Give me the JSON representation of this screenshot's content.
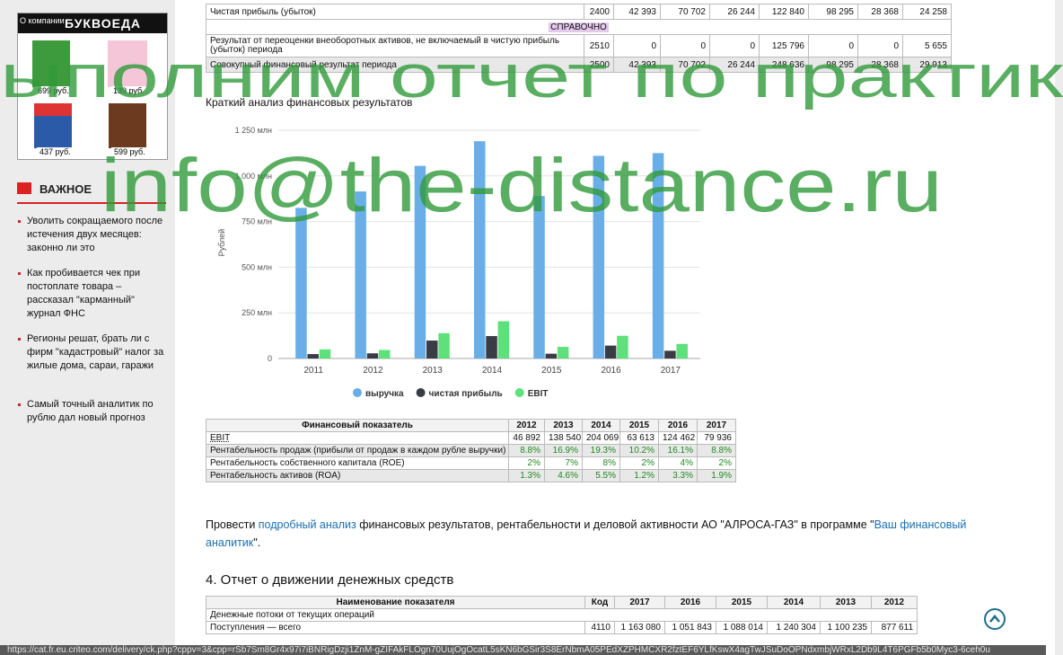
{
  "sidebar": {
    "ad_header": "О компании",
    "ad_brand": "БУКВОЕДА",
    "prices": [
      "699 руб.",
      "139 руб.",
      "437 руб.",
      "599 руб."
    ],
    "section_title": "ВАЖНОЕ",
    "news": [
      "Уволить сокращаемого после истечения двух месяцев: законно ли это",
      "Как пробивается чек при постоплате товара – рассказал \"карманный\" журнал ФНС",
      "Регионы решат, брать ли с фирм \"кадастровый\" налог за жилые дома, сараи, гаражи",
      "Самый точный аналитик по рублю дал новый прогноз"
    ]
  },
  "top_table": {
    "rows": [
      [
        "Чистая прибыль (убыток)",
        "2400",
        "42 393",
        "70 702",
        "26 244",
        "122 840",
        "98 295",
        "28 368",
        "24 258"
      ],
      [
        "СПРАВОЧНО"
      ],
      [
        "Результат от переоценки внеоборотных активов, не включаемый в чистую прибыль (убыток) периода",
        "2510",
        "0",
        "0",
        "0",
        "125 796",
        "0",
        "0",
        "5 655"
      ],
      [
        "Совокупный финансовый результат периода",
        "2500",
        "42 393",
        "70 702",
        "26 244",
        "248 636",
        "98 295",
        "28 368",
        "29 913"
      ]
    ]
  },
  "chart_data": {
    "type": "bar",
    "title": "Краткий анализ финансовых результатов",
    "y_label": "Рублей",
    "categories": [
      "2011",
      "2012",
      "2013",
      "2014",
      "2015",
      "2016",
      "2017"
    ],
    "series": [
      {
        "name": "выручка",
        "color": "#6aaee8",
        "values": [
          825,
          915,
          1055,
          1190,
          890,
          1110,
          1125
        ]
      },
      {
        "name": "чистая прибыль",
        "color": "#3a3c45",
        "values": [
          24.258,
          28.368,
          98.295,
          122.84,
          26.244,
          70.702,
          42.393
        ]
      },
      {
        "name": "EBIT",
        "color": "#5ee07a",
        "values": [
          50,
          46.892,
          138.54,
          204.069,
          63.613,
          124.462,
          79.936
        ]
      }
    ],
    "ylim": [
      0,
      1250
    ],
    "yticks": [
      0,
      {
        "value": 250,
        "label": "250 млн"
      },
      {
        "value": 500,
        "label": "500 млн"
      },
      {
        "value": 750,
        "label": "750 млн"
      },
      {
        "value": 1000,
        "label": "1 000 млн"
      },
      {
        "value": 1250,
        "label": "1 250 млн"
      }
    ],
    "grid": true,
    "legend": "bottom"
  },
  "fin_table": {
    "header": [
      "Финансовый показатель",
      "2012",
      "2013",
      "2014",
      "2015",
      "2016",
      "2017"
    ],
    "rows": [
      [
        "EBIT",
        "46 892",
        "138 540",
        "204 069",
        "63 613",
        "124 462",
        "79 936"
      ],
      [
        "Рентабельность продаж (прибыли от продаж в каждом рубле выручки)",
        "8.8%",
        "16.9%",
        "19.3%",
        "10.2%",
        "16.1%",
        "8.8%"
      ],
      [
        "Рентабельность собственного капитала (ROE)",
        "2%",
        "7%",
        "8%",
        "2%",
        "4%",
        "2%"
      ],
      [
        "Рентабельность активов (ROA)",
        "1.3%",
        "4.6%",
        "5.5%",
        "1.2%",
        "3.3%",
        "1.9%"
      ]
    ]
  },
  "paragraph": {
    "before": "Провести ",
    "link1": "подробный анализ",
    "middle": " финансовых результатов, рентабельности и деловой активности АО \"АЛРОСА-ГАЗ\" в программе \"",
    "link2": "Ваш финансовый аналитик",
    "after": "\"."
  },
  "cash_section": {
    "title": "4. Отчет о движении денежных средств",
    "header": [
      "Наименование показателя",
      "Код",
      "2017",
      "2016",
      "2015",
      "2014",
      "2013",
      "2012"
    ],
    "rows": [
      [
        "Денежные потоки от текущих операций"
      ],
      [
        "Поступления — всего",
        "4110",
        "1 163 080",
        "1 051 843",
        "1 088 014",
        "1 240 304",
        "1 100 235",
        "877 611"
      ]
    ]
  },
  "watermark": {
    "line1": "ыполним отчет по практик",
    "line2": "info@the-distance.ru"
  },
  "status_url": "https://cat.fr.eu.criteo.com/delivery/ck.php?cppv=3&cpp=rSb7Sm8Gr4x97i7iBNRigDzji1ZnM-gZIFAkFLOgn70UujOgOcatL5sKN6bGSir3S8ErNbmA05PEdXZPHMCXR2fztEF6YLfKswX4agTwJSuDoOPNdxmbjWRxL2Db9L4T6PGFb5b0Myc3-6ceh0u"
}
